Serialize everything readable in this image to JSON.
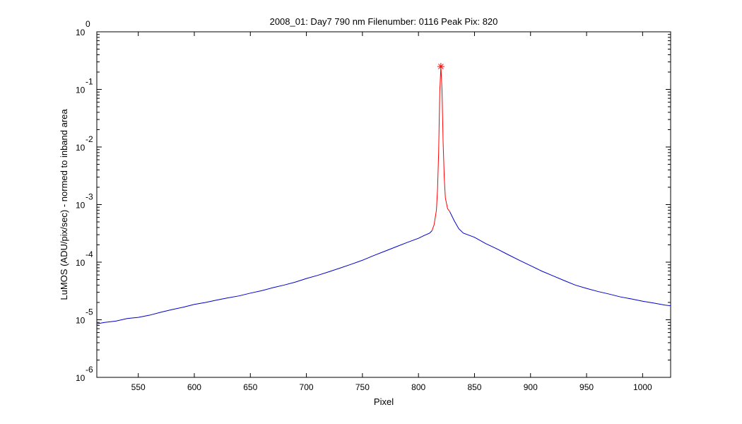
{
  "chart_data": {
    "type": "line",
    "title": "2008_01: Day7  790 nm  Filenumber: 0116 Peak Pix: 820",
    "xlabel": "Pixel",
    "ylabel": "LuMOS (ADU/pix/sec) - normed to inband area",
    "xlim": [
      513,
      1025
    ],
    "ylim": [
      1e-06,
      1
    ],
    "yscale": "log",
    "xticks": [
      550,
      600,
      650,
      700,
      750,
      800,
      850,
      900,
      950,
      1000
    ],
    "yticks": [
      {
        "base": "10",
        "exp": "0",
        "value": 1
      },
      {
        "base": "10",
        "exp": "-1",
        "value": 0.1
      },
      {
        "base": "10",
        "exp": "-2",
        "value": 0.01
      },
      {
        "base": "10",
        "exp": "-3",
        "value": 0.001
      },
      {
        "base": "10",
        "exp": "-4",
        "value": 0.0001
      },
      {
        "base": "10",
        "exp": "-5",
        "value": 1e-05
      },
      {
        "base": "10",
        "exp": "-6",
        "value": 1e-06
      }
    ],
    "grid": false,
    "series": [
      {
        "color": "#0000cc",
        "points": [
          [
            513,
            8.5e-06
          ],
          [
            520,
            9e-06
          ],
          [
            530,
            9.5e-06
          ],
          [
            540,
            1.05e-05
          ],
          [
            550,
            1.1e-05
          ],
          [
            560,
            1.2e-05
          ],
          [
            570,
            1.35e-05
          ],
          [
            580,
            1.5e-05
          ],
          [
            590,
            1.65e-05
          ],
          [
            600,
            1.85e-05
          ],
          [
            610,
            2e-05
          ],
          [
            620,
            2.2e-05
          ],
          [
            630,
            2.4e-05
          ],
          [
            640,
            2.6e-05
          ],
          [
            650,
            2.9e-05
          ],
          [
            660,
            3.2e-05
          ],
          [
            670,
            3.6e-05
          ],
          [
            680,
            4e-05
          ],
          [
            690,
            4.5e-05
          ],
          [
            700,
            5.2e-05
          ],
          [
            710,
            5.9e-05
          ],
          [
            720,
            6.8e-05
          ],
          [
            730,
            7.9e-05
          ],
          [
            740,
            9.2e-05
          ],
          [
            750,
            0.000108
          ],
          [
            760,
            0.00013
          ],
          [
            770,
            0.000155
          ],
          [
            780,
            0.000185
          ],
          [
            790,
            0.00022
          ],
          [
            800,
            0.00026
          ],
          [
            805,
            0.00029
          ],
          [
            810,
            0.00032
          ],
          [
            812,
            0.00035
          ]
        ]
      },
      {
        "color": "#ff0000",
        "points": [
          [
            812,
            0.00035
          ],
          [
            814,
            0.00045
          ],
          [
            816,
            0.0008
          ],
          [
            817,
            0.0018
          ],
          [
            818,
            0.008
          ],
          [
            819,
            0.09
          ],
          [
            820,
            0.25
          ],
          [
            821,
            0.1
          ],
          [
            822,
            0.012
          ],
          [
            823,
            0.003
          ],
          [
            824,
            0.0013
          ],
          [
            826,
            0.00085
          ],
          [
            828,
            0.00075
          ]
        ]
      },
      {
        "color": "#0000cc",
        "points": [
          [
            828,
            0.00075
          ],
          [
            832,
            0.00052
          ],
          [
            836,
            0.00038
          ],
          [
            840,
            0.00032
          ],
          [
            850,
            0.00027
          ],
          [
            860,
            0.00021
          ],
          [
            870,
            0.00017
          ],
          [
            880,
            0.000135
          ],
          [
            890,
            0.000108
          ],
          [
            900,
            8.7e-05
          ],
          [
            910,
            7e-05
          ],
          [
            920,
            5.8e-05
          ],
          [
            930,
            4.8e-05
          ],
          [
            940,
            4e-05
          ],
          [
            950,
            3.5e-05
          ],
          [
            960,
            3.1e-05
          ],
          [
            970,
            2.8e-05
          ],
          [
            980,
            2.5e-05
          ],
          [
            990,
            2.3e-05
          ],
          [
            1000,
            2.1e-05
          ],
          [
            1010,
            1.95e-05
          ],
          [
            1020,
            1.8e-05
          ],
          [
            1025,
            1.75e-05
          ]
        ]
      }
    ],
    "peak_marker": {
      "x": 820,
      "y": 0.25,
      "symbol": "*",
      "color": "#ff0000"
    }
  }
}
